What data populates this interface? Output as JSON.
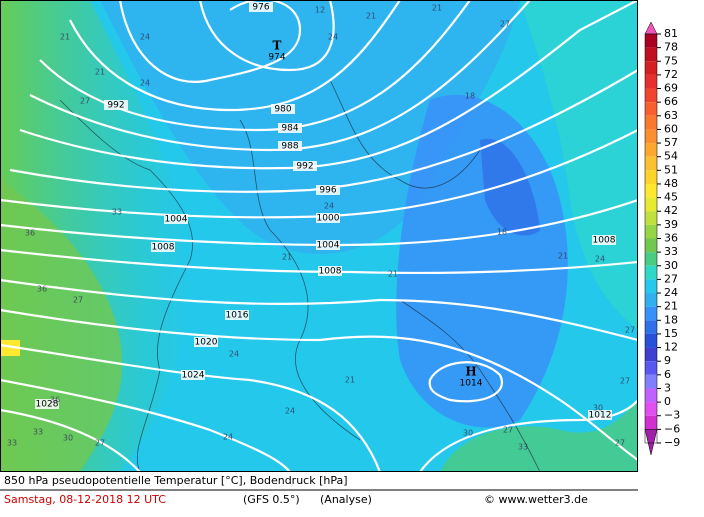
{
  "map": {
    "pressure_centers": [
      {
        "symbol": "T",
        "value": "974"
      },
      {
        "symbol": "H",
        "value": "1014"
      }
    ],
    "isobar_labels": [
      "976",
      "992",
      "980",
      "984",
      "988",
      "992",
      "996",
      "1000",
      "1004",
      "1004",
      "1008",
      "1008",
      "1008",
      "1016",
      "1020",
      "1024",
      "1028",
      "1012"
    ],
    "temperature_labels": [
      "21",
      "24",
      "21",
      "24",
      "27",
      "33",
      "36",
      "36",
      "27",
      "36",
      "33",
      "30",
      "27",
      "33",
      "24",
      "24",
      "24",
      "21",
      "21",
      "18",
      "18",
      "21",
      "24",
      "27",
      "27",
      "30",
      "27",
      "30",
      "27",
      "33",
      "24",
      "12",
      "21",
      "21",
      "27",
      "21",
      "24"
    ]
  },
  "legend": {
    "labels": [
      "81",
      "78",
      "75",
      "72",
      "69",
      "66",
      "63",
      "60",
      "57",
      "54",
      "51",
      "48",
      "45",
      "42",
      "39",
      "36",
      "33",
      "30",
      "27",
      "24",
      "21",
      "18",
      "15",
      "12",
      "9",
      "6",
      "3",
      "0",
      "−3",
      "−6",
      "−9"
    ],
    "colors": [
      "#ee55bb",
      "#aa0022",
      "#c01020",
      "#d42020",
      "#e63030",
      "#f24530",
      "#f86030",
      "#fa7830",
      "#fb9030",
      "#fca830",
      "#fdc030",
      "#fed428",
      "#fee830",
      "#e8ea30",
      "#c0e040",
      "#96d448",
      "#70c850",
      "#4ccc80",
      "#30d8c8",
      "#28c8ec",
      "#30b0f0",
      "#3890f8",
      "#3070e8",
      "#2850d8",
      "#4040d0",
      "#5858f0",
      "#8080ff",
      "#c060ff",
      "#e050f0",
      "#d030d0",
      "#a020a8"
    ]
  },
  "footer": {
    "title": "850 hPa pseudopotentielle Temperatur [°C], Bodendruck [hPa]",
    "date": "Samstag, 08-12-2018  12 UTC",
    "model": "(GFS 0.5°)",
    "run": "(Analyse)",
    "credit": "© www.wetter3.de"
  }
}
